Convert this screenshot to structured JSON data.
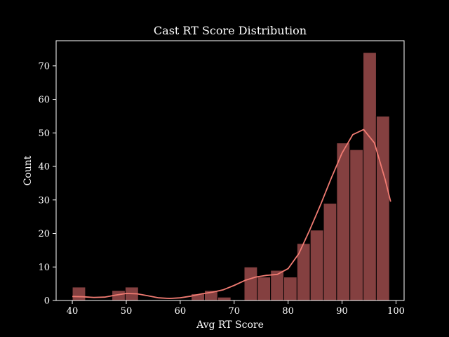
{
  "chart_data": {
    "type": "bar",
    "title": "Cast RT Score Distribution",
    "xlabel": "Avg RT Score",
    "ylabel": "Count",
    "xlim": [
      37,
      101.5
    ],
    "ylim": [
      0,
      77.5
    ],
    "xticks": [
      40,
      50,
      60,
      70,
      80,
      90,
      100
    ],
    "yticks": [
      0,
      10,
      20,
      30,
      40,
      50,
      60,
      70
    ],
    "bins": [
      {
        "start": 40.0,
        "end": 42.45,
        "count": 4
      },
      {
        "start": 42.45,
        "end": 44.9,
        "count": 0
      },
      {
        "start": 44.9,
        "end": 47.35,
        "count": 0
      },
      {
        "start": 47.35,
        "end": 49.8,
        "count": 3
      },
      {
        "start": 49.8,
        "end": 52.25,
        "count": 4
      },
      {
        "start": 52.25,
        "end": 54.7,
        "count": 0
      },
      {
        "start": 54.7,
        "end": 57.15,
        "count": 0
      },
      {
        "start": 57.15,
        "end": 59.6,
        "count": 0
      },
      {
        "start": 59.6,
        "end": 62.05,
        "count": 0
      },
      {
        "start": 62.05,
        "end": 64.5,
        "count": 2
      },
      {
        "start": 64.5,
        "end": 66.95,
        "count": 3
      },
      {
        "start": 66.95,
        "end": 69.4,
        "count": 1
      },
      {
        "start": 69.4,
        "end": 71.85,
        "count": 0
      },
      {
        "start": 71.85,
        "end": 74.3,
        "count": 10
      },
      {
        "start": 74.3,
        "end": 76.75,
        "count": 7
      },
      {
        "start": 76.75,
        "end": 79.2,
        "count": 9
      },
      {
        "start": 79.2,
        "end": 81.65,
        "count": 7
      },
      {
        "start": 81.65,
        "end": 84.1,
        "count": 17
      },
      {
        "start": 84.1,
        "end": 86.55,
        "count": 21
      },
      {
        "start": 86.55,
        "end": 89.0,
        "count": 29
      },
      {
        "start": 89.0,
        "end": 91.45,
        "count": 47
      },
      {
        "start": 91.45,
        "end": 93.9,
        "count": 45
      },
      {
        "start": 93.9,
        "end": 96.35,
        "count": 74
      },
      {
        "start": 96.35,
        "end": 98.8,
        "count": 55
      }
    ],
    "kde": {
      "x": [
        40,
        42,
        44,
        46,
        48,
        50,
        52,
        54,
        56,
        58,
        60,
        62,
        64,
        66,
        68,
        70,
        72,
        74,
        76,
        78,
        80,
        82,
        84,
        86,
        88,
        90,
        92,
        94,
        96,
        98,
        99
      ],
      "y": [
        1.2,
        1.1,
        0.9,
        1.0,
        1.6,
        2.1,
        2.0,
        1.4,
        0.8,
        0.6,
        0.8,
        1.3,
        2.0,
        2.5,
        3.2,
        4.5,
        6.0,
        7.0,
        7.5,
        7.8,
        9.5,
        14.0,
        21.0,
        28.5,
        36.5,
        44.0,
        49.5,
        51.0,
        47.0,
        36.0,
        29.5
      ]
    },
    "colors": {
      "bar_fill": "#844040",
      "bar_edge": "#000000",
      "kde_line": "#f07b72",
      "axis": "#ffffff",
      "text": "#ffffff",
      "background": "#000000"
    }
  }
}
